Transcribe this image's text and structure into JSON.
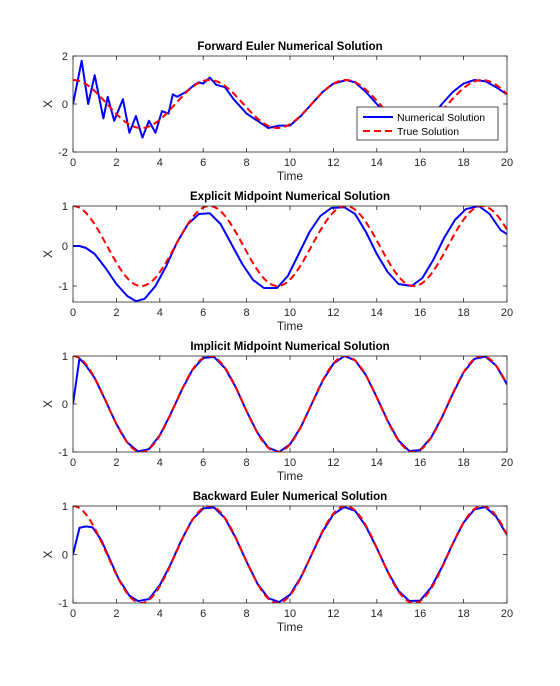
{
  "figure": {
    "background": "#ffffff"
  },
  "chart_data": [
    {
      "type": "line",
      "title": "Forward Euler Numerical Solution",
      "xlabel": "Time",
      "ylabel": "X",
      "xlim": [
        0,
        20
      ],
      "ylim": [
        -2,
        2
      ],
      "xticks": [
        0,
        2,
        4,
        6,
        8,
        10,
        12,
        14,
        16,
        18,
        20
      ],
      "yticks": [
        -2,
        0,
        2
      ],
      "legend": {
        "placement": "right",
        "entries": [
          "Numerical Solution",
          "True Solution"
        ]
      },
      "series": [
        {
          "name": "Numerical Solution",
          "color": "#0000ff",
          "style": "solid",
          "x": [
            0,
            0.4,
            0.7,
            1.0,
            1.4,
            1.6,
            1.9,
            2.3,
            2.6,
            2.9,
            3.2,
            3.5,
            3.8,
            4.1,
            4.4,
            4.6,
            4.8,
            5.2,
            5.6,
            5.8,
            6.0,
            6.3,
            6.6,
            7.0,
            7.4,
            8.0,
            8.5,
            9.0,
            9.5,
            10.0,
            10.5,
            11.0,
            11.5,
            12.0,
            12.6,
            13.0,
            13.5,
            14.0,
            14.5,
            15.0,
            15.5,
            16.0,
            16.5,
            17.0,
            17.5,
            18.0,
            18.5,
            19.0,
            19.5,
            20.0
          ],
          "y": [
            0,
            1.8,
            0,
            1.2,
            -0.6,
            0.3,
            -0.7,
            0.2,
            -1.2,
            -0.5,
            -1.4,
            -0.7,
            -1.2,
            -0.3,
            -0.4,
            0.4,
            0.3,
            0.5,
            0.8,
            0.9,
            0.85,
            1.1,
            0.8,
            0.7,
            0.2,
            -0.4,
            -0.7,
            -1.0,
            -0.9,
            -0.9,
            -0.5,
            0.0,
            0.5,
            0.85,
            1.0,
            0.9,
            0.5,
            0.0,
            -0.5,
            -0.8,
            -1.0,
            -0.9,
            -0.6,
            0.0,
            0.5,
            0.85,
            1.0,
            0.95,
            0.7,
            0.4
          ]
        },
        {
          "name": "True Solution",
          "color": "#ff0000",
          "style": "dashed",
          "function": "cos(t)"
        }
      ]
    },
    {
      "type": "line",
      "title": "Explicit Midpoint Numerical Solution",
      "xlabel": "Time",
      "ylabel": "X",
      "xlim": [
        0,
        20
      ],
      "ylim": [
        -1.4,
        1.0
      ],
      "xticks": [
        0,
        2,
        4,
        6,
        8,
        10,
        12,
        14,
        16,
        18,
        20
      ],
      "yticks": [
        -1,
        0,
        1
      ],
      "series": [
        {
          "name": "Numerical Solution",
          "color": "#0000ff",
          "style": "solid",
          "x": [
            0,
            0.3,
            0.6,
            1.0,
            1.5,
            2.0,
            2.5,
            2.9,
            3.3,
            3.8,
            4.3,
            4.8,
            5.3,
            5.8,
            6.3,
            6.8,
            7.3,
            7.8,
            8.3,
            8.8,
            9.4,
            9.9,
            10.4,
            10.9,
            11.4,
            11.9,
            12.5,
            13.0,
            13.5,
            14.0,
            14.5,
            15.0,
            15.6,
            16.1,
            16.6,
            17.1,
            17.6,
            18.1,
            18.7,
            19.2,
            19.7,
            20.0
          ],
          "y": [
            0,
            0,
            -0.05,
            -0.2,
            -0.55,
            -0.95,
            -1.25,
            -1.38,
            -1.32,
            -1.0,
            -0.5,
            0.1,
            0.55,
            0.8,
            0.82,
            0.55,
            0.05,
            -0.45,
            -0.85,
            -1.05,
            -1.05,
            -0.75,
            -0.2,
            0.35,
            0.75,
            0.95,
            0.97,
            0.8,
            0.35,
            -0.2,
            -0.65,
            -0.95,
            -1.0,
            -0.8,
            -0.35,
            0.2,
            0.65,
            0.92,
            1.0,
            0.8,
            0.4,
            0.3
          ]
        },
        {
          "name": "True Solution",
          "color": "#ff0000",
          "style": "dashed",
          "function": "cos(t)"
        }
      ]
    },
    {
      "type": "line",
      "title": "Implicit Midpoint Numerical Solution",
      "xlabel": "Time",
      "ylabel": "X",
      "xlim": [
        0,
        20
      ],
      "ylim": [
        -1,
        1
      ],
      "xticks": [
        0,
        2,
        4,
        6,
        8,
        10,
        12,
        14,
        16,
        18,
        20
      ],
      "yticks": [
        -1,
        0,
        1
      ],
      "series": [
        {
          "name": "Numerical Solution",
          "color": "#0000ff",
          "style": "solid",
          "x": [
            0,
            0.3,
            0.6,
            1.0,
            1.5,
            2.0,
            2.5,
            3.0,
            3.5,
            4.0,
            4.5,
            5.0,
            5.5,
            6.0,
            6.5,
            7.0,
            7.5,
            8.0,
            8.5,
            9.0,
            9.5,
            10.0,
            10.5,
            11.0,
            11.5,
            12.0,
            12.5,
            13.0,
            13.5,
            14.0,
            14.5,
            15.0,
            15.5,
            16.0,
            16.5,
            17.0,
            17.5,
            18.0,
            18.5,
            19.0,
            19.5,
            20.0
          ],
          "y": [
            0,
            0.95,
            0.8,
            0.54,
            0.07,
            -0.42,
            -0.8,
            -0.99,
            -0.94,
            -0.65,
            -0.21,
            0.28,
            0.71,
            0.96,
            0.98,
            0.75,
            0.35,
            -0.15,
            -0.6,
            -0.91,
            -1.0,
            -0.84,
            -0.48,
            -0.0,
            0.48,
            0.84,
            1.0,
            0.91,
            0.6,
            0.14,
            -0.35,
            -0.76,
            -0.98,
            -0.96,
            -0.7,
            -0.28,
            0.21,
            0.66,
            0.94,
            0.99,
            0.8,
            0.41
          ]
        },
        {
          "name": "True Solution",
          "color": "#ff0000",
          "style": "dashed",
          "function": "cos(t)"
        }
      ]
    },
    {
      "type": "line",
      "title": "Backward Euler Numerical Solution",
      "xlabel": "Time",
      "ylabel": "X",
      "xlim": [
        0,
        20
      ],
      "ylim": [
        -1,
        1
      ],
      "xticks": [
        0,
        2,
        4,
        6,
        8,
        10,
        12,
        14,
        16,
        18,
        20
      ],
      "yticks": [
        -1,
        0,
        1
      ],
      "series": [
        {
          "name": "Numerical Solution",
          "color": "#0000ff",
          "style": "solid",
          "x": [
            0,
            0.3,
            0.6,
            0.9,
            1.3,
            1.7,
            2.1,
            2.6,
            3.0,
            3.5,
            4.0,
            4.5,
            5.0,
            5.5,
            6.0,
            6.5,
            7.0,
            7.5,
            8.0,
            8.5,
            9.0,
            9.5,
            10.0,
            10.5,
            11.0,
            11.5,
            12.0,
            12.5,
            13.0,
            13.5,
            14.0,
            14.5,
            15.0,
            15.5,
            16.0,
            16.5,
            17.0,
            17.5,
            18.0,
            18.5,
            19.0,
            19.5,
            20.0
          ],
          "y": [
            0,
            0.55,
            0.58,
            0.56,
            0.3,
            -0.1,
            -0.5,
            -0.85,
            -0.96,
            -0.92,
            -0.63,
            -0.2,
            0.3,
            0.72,
            0.95,
            0.97,
            0.75,
            0.34,
            -0.15,
            -0.6,
            -0.9,
            -0.98,
            -0.83,
            -0.47,
            0.0,
            0.47,
            0.83,
            0.98,
            0.9,
            0.58,
            0.13,
            -0.35,
            -0.75,
            -0.96,
            -0.95,
            -0.68,
            -0.26,
            0.22,
            0.66,
            0.93,
            0.98,
            0.78,
            0.4
          ]
        },
        {
          "name": "True Solution",
          "color": "#ff0000",
          "style": "dashed",
          "function": "cos(t)"
        }
      ]
    }
  ]
}
